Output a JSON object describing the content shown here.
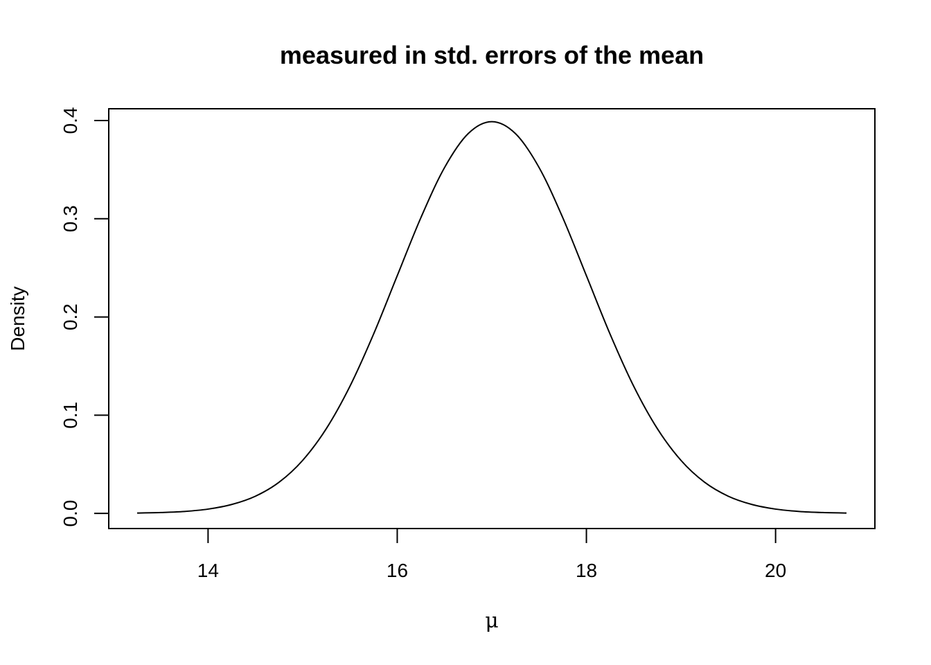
{
  "chart_data": {
    "type": "line",
    "title": "measured in std. errors of the mean",
    "xlabel": "μ",
    "ylabel": "Density",
    "xlim": [
      12.95,
      21.05
    ],
    "ylim": [
      -0.0154,
      0.412
    ],
    "xticks": [
      14,
      16,
      18,
      20
    ],
    "xtick_labels": [
      "14",
      "16",
      "18",
      "20"
    ],
    "yticks": [
      0.0,
      0.1,
      0.2,
      0.3,
      0.4
    ],
    "ytick_labels": [
      "0.0",
      "0.1",
      "0.2",
      "0.3",
      "0.4"
    ],
    "grid": false,
    "series": [
      {
        "color": "#000000",
        "x": [
          13.25,
          13.5,
          13.75,
          14.0,
          14.25,
          14.5,
          14.75,
          15.0,
          15.25,
          15.5,
          15.75,
          16.0,
          16.25,
          16.5,
          16.75,
          17.0,
          17.25,
          17.5,
          17.75,
          18.0,
          18.25,
          18.5,
          18.75,
          19.0,
          19.25,
          19.5,
          19.75,
          20.0,
          20.25,
          20.5,
          20.75
        ],
        "y": [
          0.0004,
          0.0009,
          0.002,
          0.0044,
          0.0091,
          0.0175,
          0.0317,
          0.054,
          0.0863,
          0.1295,
          0.1826,
          0.242,
          0.3011,
          0.3521,
          0.3867,
          0.3989,
          0.3867,
          0.3521,
          0.3011,
          0.242,
          0.1826,
          0.1295,
          0.0863,
          0.054,
          0.0317,
          0.0175,
          0.0091,
          0.0044,
          0.002,
          0.0009,
          0.0004
        ]
      }
    ]
  }
}
